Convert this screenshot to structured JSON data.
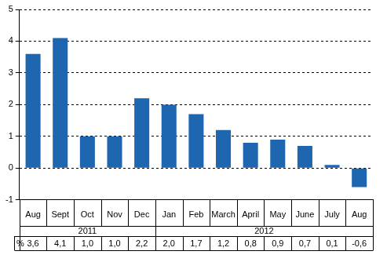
{
  "chart_data": {
    "type": "bar",
    "categories": [
      "Aug",
      "Sept",
      "Oct",
      "Nov",
      "Dec",
      "Jan",
      "Feb",
      "March",
      "April",
      "May",
      "June",
      "July",
      "Aug"
    ],
    "x_groups": [
      {
        "label": "2011",
        "count": 5
      },
      {
        "label": "2012",
        "count": 8
      }
    ],
    "values": [
      3.6,
      4.1,
      1.0,
      1.0,
      2.2,
      2.0,
      1.7,
      1.2,
      0.8,
      0.9,
      0.7,
      0.1,
      -0.6
    ],
    "value_labels": [
      "3,6",
      "4,1",
      "1,0",
      "1,0",
      "2,2",
      "2,0",
      "1,7",
      "1,2",
      "0,8",
      "0,9",
      "0,7",
      "0,1",
      "-0,6"
    ],
    "table_header": "%",
    "color": "#1f66b0",
    "ylim": [
      -1,
      5
    ],
    "yticks": [
      -1,
      0,
      1,
      2,
      3,
      4,
      5
    ],
    "grid": true
  }
}
